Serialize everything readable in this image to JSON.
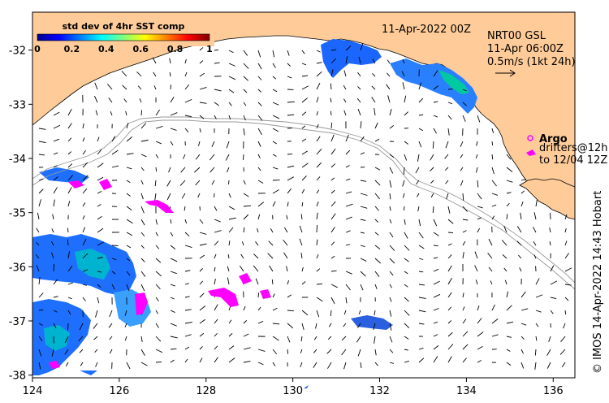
{
  "map": {
    "timestamp": "11-Apr-2022 00Z",
    "credit": "© IMOS 14-Apr-2022 14:43 Hobart",
    "lon_ticks": [
      "124",
      "126",
      "128",
      "130",
      "132",
      "134",
      "136"
    ],
    "lat_ticks": [
      "-32",
      "-33",
      "-34",
      "-35",
      "-36",
      "-37",
      "-38"
    ],
    "lon_range": [
      124,
      136.5
    ],
    "lat_range": [
      -38.05,
      -31.3
    ],
    "land_color": "#ffcc99",
    "ocean_color": "#ffffff"
  },
  "colorbar": {
    "title": "std dev of 4hr SST comp",
    "ticks": [
      "0",
      "0.2",
      "0.4",
      "0.6",
      "0.8",
      "1"
    ],
    "colormap": "jet"
  },
  "current_legend": {
    "line1": "NRT00 GSL",
    "line2": "11-Apr 06:00Z",
    "line3": "0.5m/s (1kt 24h)",
    "arrow_icon": "arrow-right-icon"
  },
  "float_legend": {
    "argo_label": "Argo",
    "drifter_line1": "drifters@12h",
    "drifter_line2": "to 12/04 12Z",
    "argo_color": "#ff00ff",
    "drifter_color": "#ff00ff"
  }
}
